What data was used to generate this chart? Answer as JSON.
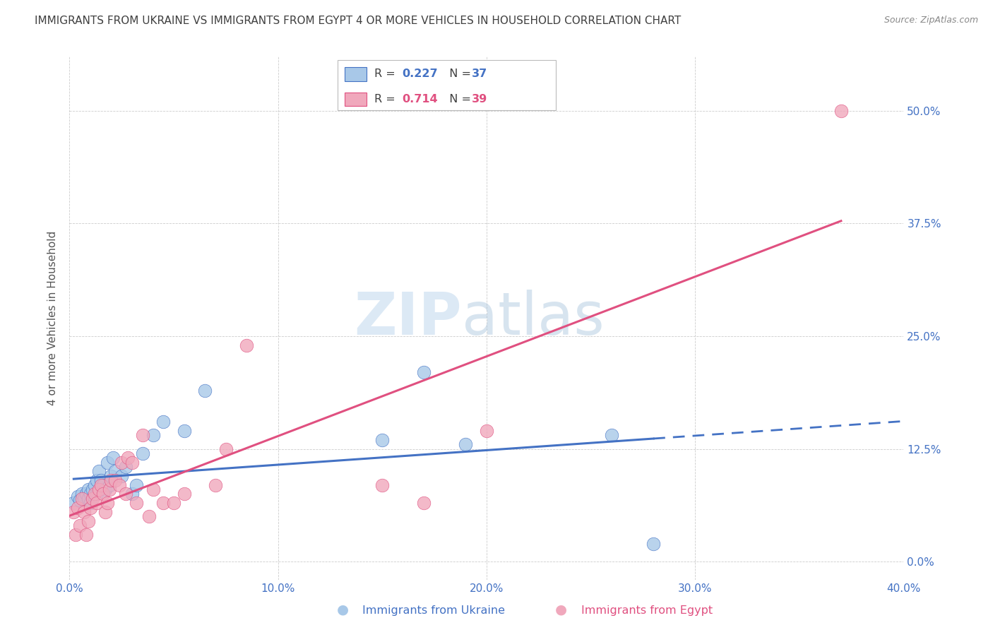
{
  "title": "IMMIGRANTS FROM UKRAINE VS IMMIGRANTS FROM EGYPT 4 OR MORE VEHICLES IN HOUSEHOLD CORRELATION CHART",
  "source": "Source: ZipAtlas.com",
  "ylabel": "4 or more Vehicles in Household",
  "legend_ukraine": "Immigrants from Ukraine",
  "legend_egypt": "Immigrants from Egypt",
  "R_ukraine": "0.227",
  "N_ukraine": "37",
  "R_egypt": "0.714",
  "N_egypt": "39",
  "xlim": [
    0.0,
    0.4
  ],
  "ylim": [
    -0.02,
    0.56
  ],
  "yticks": [
    0.0,
    0.125,
    0.25,
    0.375,
    0.5
  ],
  "ytick_labels": [
    "0.0%",
    "12.5%",
    "25.0%",
    "37.5%",
    "50.0%"
  ],
  "xticks": [
    0.0,
    0.1,
    0.2,
    0.3,
    0.4
  ],
  "xtick_labels": [
    "0.0%",
    "10.0%",
    "20.0%",
    "30.0%",
    "40.0%"
  ],
  "color_ukraine": "#A8C8E8",
  "color_egypt": "#F0A8BC",
  "color_trend_ukraine": "#4472C4",
  "color_trend_egypt": "#E05080",
  "ukraine_x": [
    0.002,
    0.004,
    0.005,
    0.006,
    0.007,
    0.008,
    0.009,
    0.009,
    0.01,
    0.01,
    0.011,
    0.012,
    0.013,
    0.013,
    0.014,
    0.015,
    0.016,
    0.017,
    0.018,
    0.019,
    0.02,
    0.021,
    0.022,
    0.025,
    0.027,
    0.03,
    0.032,
    0.035,
    0.04,
    0.045,
    0.055,
    0.065,
    0.15,
    0.17,
    0.19,
    0.26,
    0.28
  ],
  "ukraine_y": [
    0.065,
    0.072,
    0.068,
    0.075,
    0.07,
    0.075,
    0.07,
    0.08,
    0.065,
    0.075,
    0.08,
    0.085,
    0.075,
    0.09,
    0.1,
    0.09,
    0.085,
    0.08,
    0.11,
    0.085,
    0.095,
    0.115,
    0.1,
    0.095,
    0.105,
    0.075,
    0.085,
    0.12,
    0.14,
    0.155,
    0.145,
    0.19,
    0.135,
    0.21,
    0.13,
    0.14,
    0.02
  ],
  "egypt_x": [
    0.002,
    0.003,
    0.004,
    0.005,
    0.006,
    0.007,
    0.008,
    0.009,
    0.01,
    0.011,
    0.012,
    0.013,
    0.014,
    0.015,
    0.016,
    0.017,
    0.018,
    0.019,
    0.02,
    0.022,
    0.024,
    0.025,
    0.027,
    0.028,
    0.03,
    0.032,
    0.035,
    0.038,
    0.04,
    0.045,
    0.05,
    0.055,
    0.07,
    0.075,
    0.085,
    0.15,
    0.17,
    0.2,
    0.37
  ],
  "egypt_y": [
    0.055,
    0.03,
    0.06,
    0.04,
    0.07,
    0.055,
    0.03,
    0.045,
    0.06,
    0.07,
    0.075,
    0.065,
    0.08,
    0.085,
    0.075,
    0.055,
    0.065,
    0.08,
    0.09,
    0.09,
    0.085,
    0.11,
    0.075,
    0.115,
    0.11,
    0.065,
    0.14,
    0.05,
    0.08,
    0.065,
    0.065,
    0.075,
    0.085,
    0.125,
    0.24,
    0.085,
    0.065,
    0.145,
    0.5
  ],
  "watermark_zip": "ZIP",
  "watermark_atlas": "atlas",
  "background_color": "#FFFFFF",
  "grid_color": "#CCCCCC",
  "axis_label_color": "#4472C4",
  "title_color": "#404040",
  "text_dark": "#404040"
}
